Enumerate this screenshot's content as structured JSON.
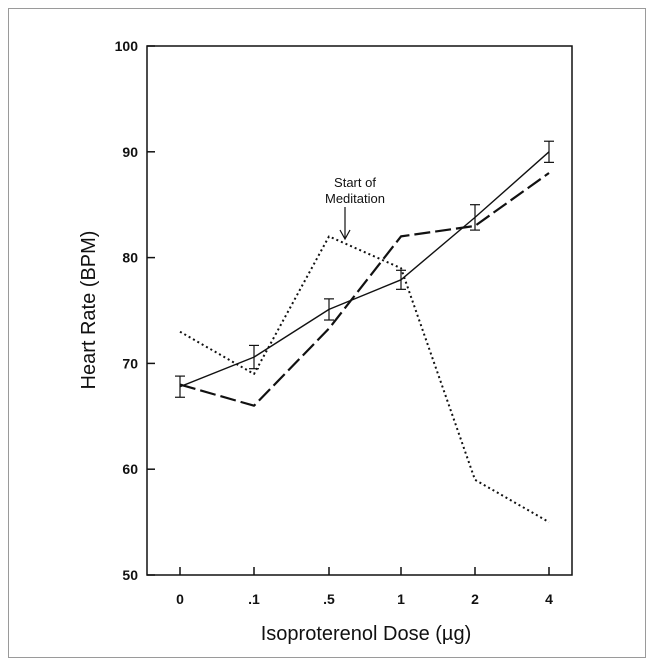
{
  "chart_data": {
    "type": "line",
    "categories": [
      "0",
      ".1",
      ".5",
      "1",
      "2",
      "4"
    ],
    "xlabel": "Isoproterenol Dose (µg)",
    "ylabel": "Heart Rate (BPM)",
    "ylim": [
      50,
      100
    ],
    "yticks": [
      50,
      60,
      70,
      80,
      90,
      100
    ],
    "grid": false,
    "legend": "none",
    "series": [
      {
        "style": "solid",
        "values": [
          67.8,
          70.6,
          75.1,
          77.9,
          83.8,
          90.0
        ],
        "error": [
          1.0,
          1.1,
          1.0,
          0.9,
          1.2,
          1.0
        ]
      },
      {
        "style": "dashed",
        "values": [
          68.0,
          66.0,
          73.3,
          82.0,
          83.0,
          88.0
        ]
      },
      {
        "style": "dotted",
        "values": [
          73.0,
          69.0,
          82.0,
          79.0,
          59.0,
          55.0
        ]
      }
    ],
    "annotations": [
      {
        "line1": "Start of",
        "line2": "Meditation",
        "x_index": 2.3,
        "y": 81.5
      }
    ]
  },
  "colors": {
    "line": "#111111",
    "frame": "#9a9a9a"
  }
}
